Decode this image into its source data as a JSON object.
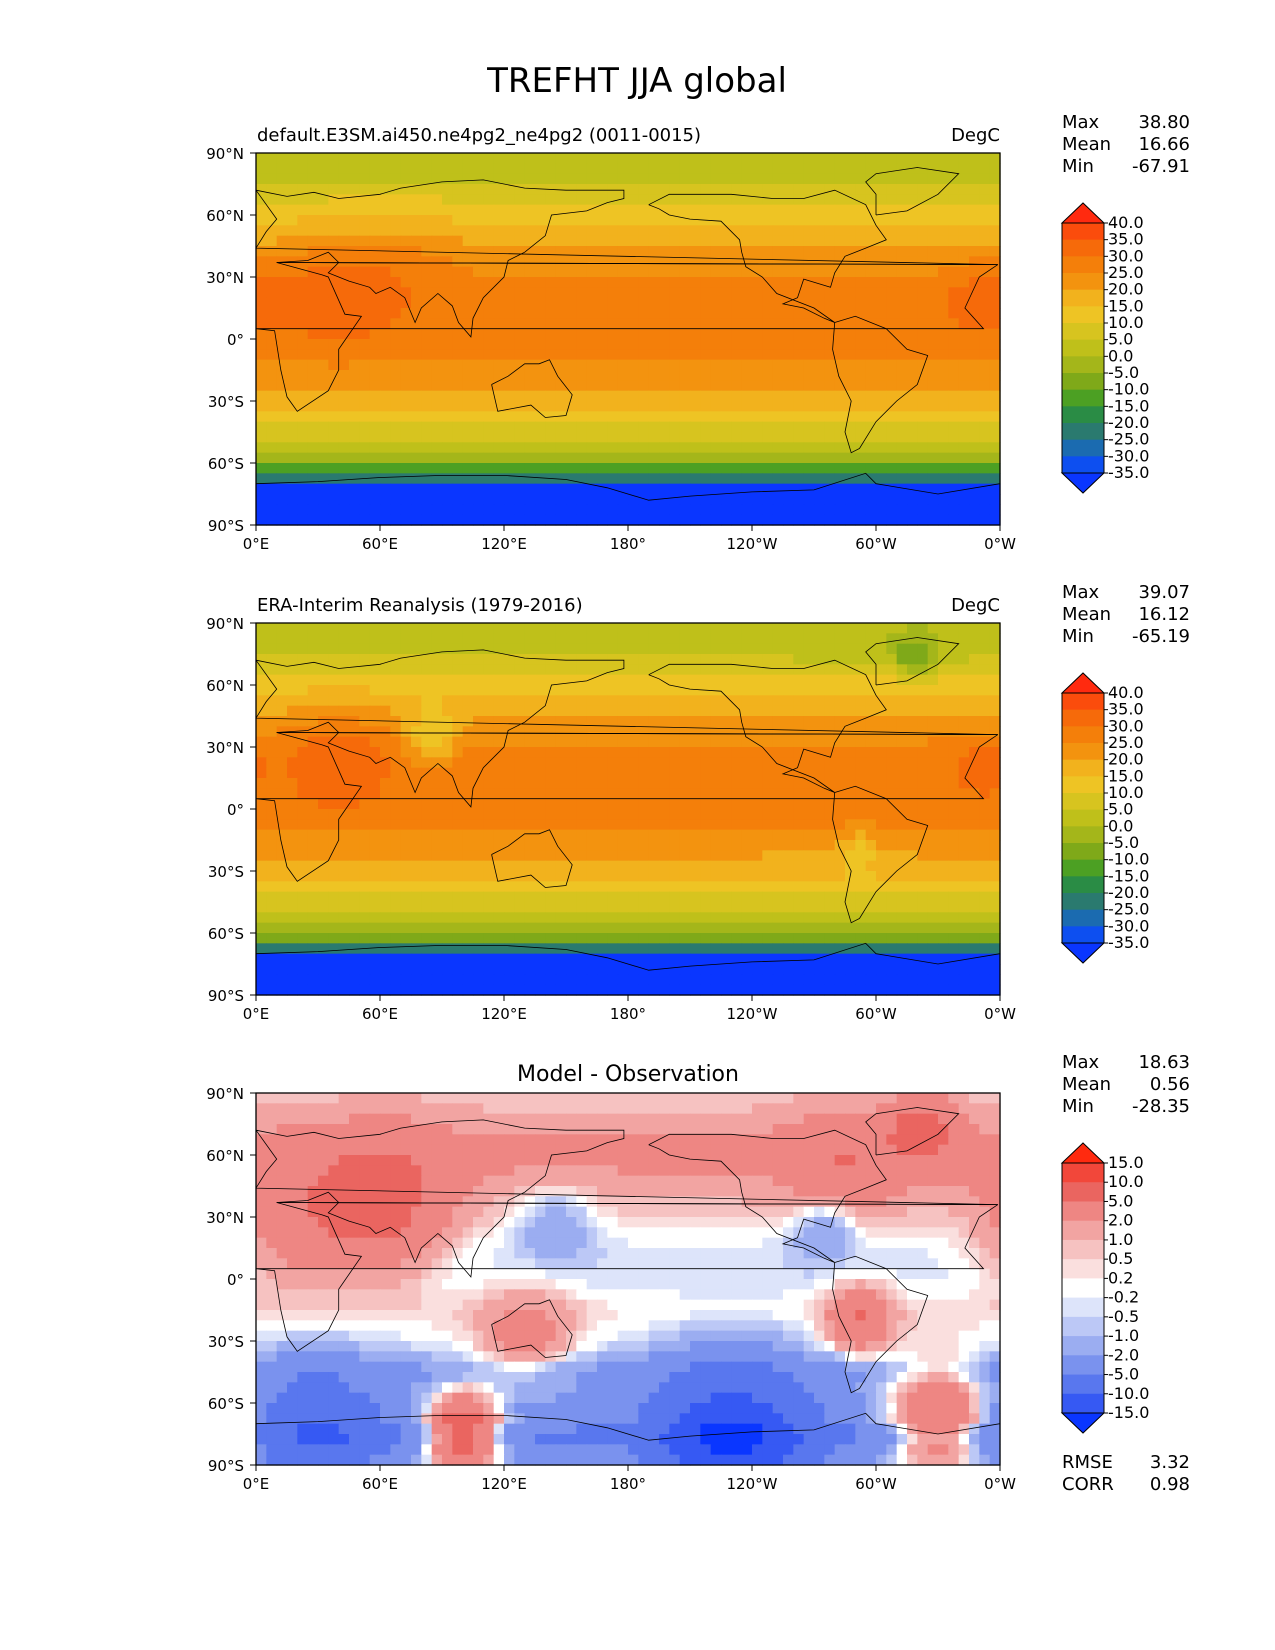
{
  "figure": {
    "title": "TREFHT JJA global"
  },
  "chart_data": [
    {
      "type": "heatmap",
      "variable": "TREFHT",
      "left_title": "default.E3SM.ai450.ne4pg2_ne4pg2 (0011-0015)",
      "right_title": "DegC",
      "stats": [
        {
          "label": "Max",
          "value": "38.80"
        },
        {
          "label": "Mean",
          "value": "16.66"
        },
        {
          "label": "Min",
          "value": "-67.91"
        }
      ],
      "ylim": [
        -90,
        90
      ],
      "xlim": [
        0,
        360
      ],
      "yticks": [
        "90°N",
        "60°N",
        "30°N",
        "0°",
        "30°S",
        "60°S",
        "90°S"
      ],
      "xticks": [
        "0°E",
        "60°E",
        "120°E",
        "180°",
        "120°W",
        "60°W",
        "0°W"
      ],
      "colorbar_labels": [
        "40.0",
        "35.0",
        "30.0",
        "25.0",
        "20.0",
        "15.0",
        "10.0",
        "5.0",
        "0.0",
        "-5.0",
        "-10.0",
        "-15.0",
        "-20.0",
        "-25.0",
        "-30.0",
        "-35.0"
      ],
      "colorbar_colors": [
        "#ff2a0f",
        "#fb4c0c",
        "#f66a0a",
        "#f47f0a",
        "#f3930f",
        "#f2b21d",
        "#eec424",
        "#d7c41f",
        "#bfc01a",
        "#a4b61a",
        "#7fa919",
        "#4ca023",
        "#2a8c45",
        "#2a7a6f",
        "#1b6bb0",
        "#0d4ff0",
        "#0a36ff"
      ],
      "field": {
        "lat_bands": [
          {
            "lat": 85,
            "value": 2
          },
          {
            "lat": 75,
            "value": 4
          },
          {
            "lat": 65,
            "value": 10
          },
          {
            "lat": 55,
            "value": 14
          },
          {
            "lat": 45,
            "value": 19
          },
          {
            "lat": 35,
            "value": 23
          },
          {
            "lat": 25,
            "value": 26
          },
          {
            "lat": 15,
            "value": 27
          },
          {
            "lat": 5,
            "value": 27
          },
          {
            "lat": -5,
            "value": 26
          },
          {
            "lat": -15,
            "value": 23
          },
          {
            "lat": -25,
            "value": 19
          },
          {
            "lat": -35,
            "value": 14
          },
          {
            "lat": -45,
            "value": 8
          },
          {
            "lat": -55,
            "value": 1
          },
          {
            "lat": -62,
            "value": -10
          },
          {
            "lat": -68,
            "value": -25
          },
          {
            "lat": -75,
            "value": -45
          },
          {
            "lat": -85,
            "value": -60
          }
        ],
        "blobs": [
          {
            "lon": 40,
            "lat": 28,
            "value": 8,
            "r": 30
          },
          {
            "lon": 350,
            "lat": 20,
            "value": 6,
            "r": 20
          },
          {
            "lon": 80,
            "lat": 45,
            "value": 4,
            "r": 25
          }
        ]
      }
    },
    {
      "type": "heatmap",
      "variable": "TREFHT",
      "left_title": "ERA-Interim Reanalysis (1979-2016)",
      "right_title": "DegC",
      "stats": [
        {
          "label": "Max",
          "value": "39.07"
        },
        {
          "label": "Mean",
          "value": "16.12"
        },
        {
          "label": "Min",
          "value": "-65.19"
        }
      ],
      "ylim": [
        -90,
        90
      ],
      "xlim": [
        0,
        360
      ],
      "yticks": [
        "90°N",
        "60°N",
        "30°N",
        "0°",
        "30°S",
        "60°S",
        "90°S"
      ],
      "xticks": [
        "0°E",
        "60°E",
        "120°E",
        "180°",
        "120°W",
        "60°W",
        "0°W"
      ],
      "colorbar_labels": [
        "40.0",
        "35.0",
        "30.0",
        "25.0",
        "20.0",
        "15.0",
        "10.0",
        "5.0",
        "0.0",
        "-5.0",
        "-10.0",
        "-15.0",
        "-20.0",
        "-25.0",
        "-30.0",
        "-35.0"
      ],
      "colorbar_colors": [
        "#ff2a0f",
        "#fb4c0c",
        "#f66a0a",
        "#f47f0a",
        "#f3930f",
        "#f2b21d",
        "#eec424",
        "#d7c41f",
        "#bfc01a",
        "#a4b61a",
        "#7fa919",
        "#4ca023",
        "#2a8c45",
        "#2a7a6f",
        "#1b6bb0",
        "#0d4ff0",
        "#0a36ff"
      ],
      "field": {
        "lat_bands": [
          {
            "lat": 85,
            "value": 1
          },
          {
            "lat": 75,
            "value": 3
          },
          {
            "lat": 65,
            "value": 11
          },
          {
            "lat": 55,
            "value": 15
          },
          {
            "lat": 45,
            "value": 20
          },
          {
            "lat": 35,
            "value": 24
          },
          {
            "lat": 25,
            "value": 27
          },
          {
            "lat": 15,
            "value": 27
          },
          {
            "lat": 5,
            "value": 27
          },
          {
            "lat": -5,
            "value": 26
          },
          {
            "lat": -15,
            "value": 23
          },
          {
            "lat": -25,
            "value": 19
          },
          {
            "lat": -35,
            "value": 14
          },
          {
            "lat": -45,
            "value": 8
          },
          {
            "lat": -55,
            "value": 1
          },
          {
            "lat": -62,
            "value": -8
          },
          {
            "lat": -68,
            "value": -22
          },
          {
            "lat": -75,
            "value": -45
          },
          {
            "lat": -85,
            "value": -60
          }
        ],
        "blobs": [
          {
            "lon": 40,
            "lat": 25,
            "value": 8,
            "r": 25
          },
          {
            "lon": 85,
            "lat": 35,
            "value": -14,
            "r": 12
          },
          {
            "lon": 318,
            "lat": 72,
            "value": -14,
            "r": 10
          },
          {
            "lon": 292,
            "lat": -20,
            "value": -10,
            "r": 8
          },
          {
            "lon": 350,
            "lat": 20,
            "value": 6,
            "r": 15
          }
        ]
      }
    },
    {
      "type": "heatmap",
      "variable": "TREFHT",
      "left_title": "",
      "center_title": "Model - Observation",
      "right_title": "",
      "stats": [
        {
          "label": "Max",
          "value": "18.63"
        },
        {
          "label": "Mean",
          "value": "0.56"
        },
        {
          "label": "Min",
          "value": "-28.35"
        }
      ],
      "extra_stats": [
        {
          "label": "RMSE",
          "value": "3.32"
        },
        {
          "label": "CORR",
          "value": "0.98"
        }
      ],
      "ylim": [
        -90,
        90
      ],
      "xlim": [
        0,
        360
      ],
      "yticks": [
        "90°N",
        "60°N",
        "30°N",
        "0°",
        "30°S",
        "60°S",
        "90°S"
      ],
      "xticks": [
        "0°E",
        "60°E",
        "120°E",
        "180°",
        "120°W",
        "60°W",
        "0°W"
      ],
      "colorbar_labels": [
        "15.0",
        "10.0",
        "5.0",
        "2.0",
        "1.0",
        "0.5",
        "0.2",
        "-0.2",
        "-0.5",
        "-1.0",
        "-2.0",
        "-5.0",
        "-10.0",
        "-15.0"
      ],
      "colorbar_colors": [
        "#ff2a0f",
        "#f2473a",
        "#ea6560",
        "#ee8683",
        "#f2a4a2",
        "#f6c2c1",
        "#fadfde",
        "#ffffff",
        "#dde4fa",
        "#bcc8f6",
        "#9badf1",
        "#7a92ee",
        "#5977ee",
        "#3659f3",
        "#0a36ff"
      ],
      "field": {
        "lat_bands": [
          {
            "lat": 85,
            "value": 0.8
          },
          {
            "lat": 75,
            "value": 1.5
          },
          {
            "lat": 65,
            "value": 2.2
          },
          {
            "lat": 55,
            "value": 2.2
          },
          {
            "lat": 45,
            "value": 1.5
          },
          {
            "lat": 35,
            "value": 0.8
          },
          {
            "lat": 25,
            "value": 0.2
          },
          {
            "lat": 15,
            "value": -0.3
          },
          {
            "lat": 5,
            "value": -0.4
          },
          {
            "lat": -5,
            "value": -0.2
          },
          {
            "lat": -15,
            "value": 0.3
          },
          {
            "lat": -25,
            "value": 0.0
          },
          {
            "lat": -35,
            "value": -0.6
          },
          {
            "lat": -45,
            "value": -2.5
          },
          {
            "lat": -55,
            "value": -2.0
          },
          {
            "lat": -62,
            "value": -3.0
          },
          {
            "lat": -68,
            "value": -3.0
          },
          {
            "lat": -75,
            "value": -6.0
          },
          {
            "lat": -85,
            "value": -3.0
          }
        ],
        "blobs": [
          {
            "lon": 60,
            "lat": 35,
            "value": 6,
            "r": 30
          },
          {
            "lon": 20,
            "lat": 25,
            "value": 3,
            "r": 30
          },
          {
            "lon": 285,
            "lat": 55,
            "value": 3,
            "r": 25
          },
          {
            "lon": 322,
            "lat": 72,
            "value": 6,
            "r": 15
          },
          {
            "lon": 292,
            "lat": -20,
            "value": 5,
            "r": 15
          },
          {
            "lon": 130,
            "lat": -28,
            "value": 3,
            "r": 22
          },
          {
            "lon": 275,
            "lat": 25,
            "value": -2.5,
            "r": 15
          },
          {
            "lon": 145,
            "lat": 28,
            "value": -2,
            "r": 18
          },
          {
            "lon": 100,
            "lat": -75,
            "value": 12,
            "r": 18
          },
          {
            "lon": 330,
            "lat": -70,
            "value": 8,
            "r": 25
          },
          {
            "lon": 230,
            "lat": -78,
            "value": -12,
            "r": 35
          },
          {
            "lon": 30,
            "lat": -72,
            "value": -6,
            "r": 30
          }
        ]
      }
    }
  ]
}
